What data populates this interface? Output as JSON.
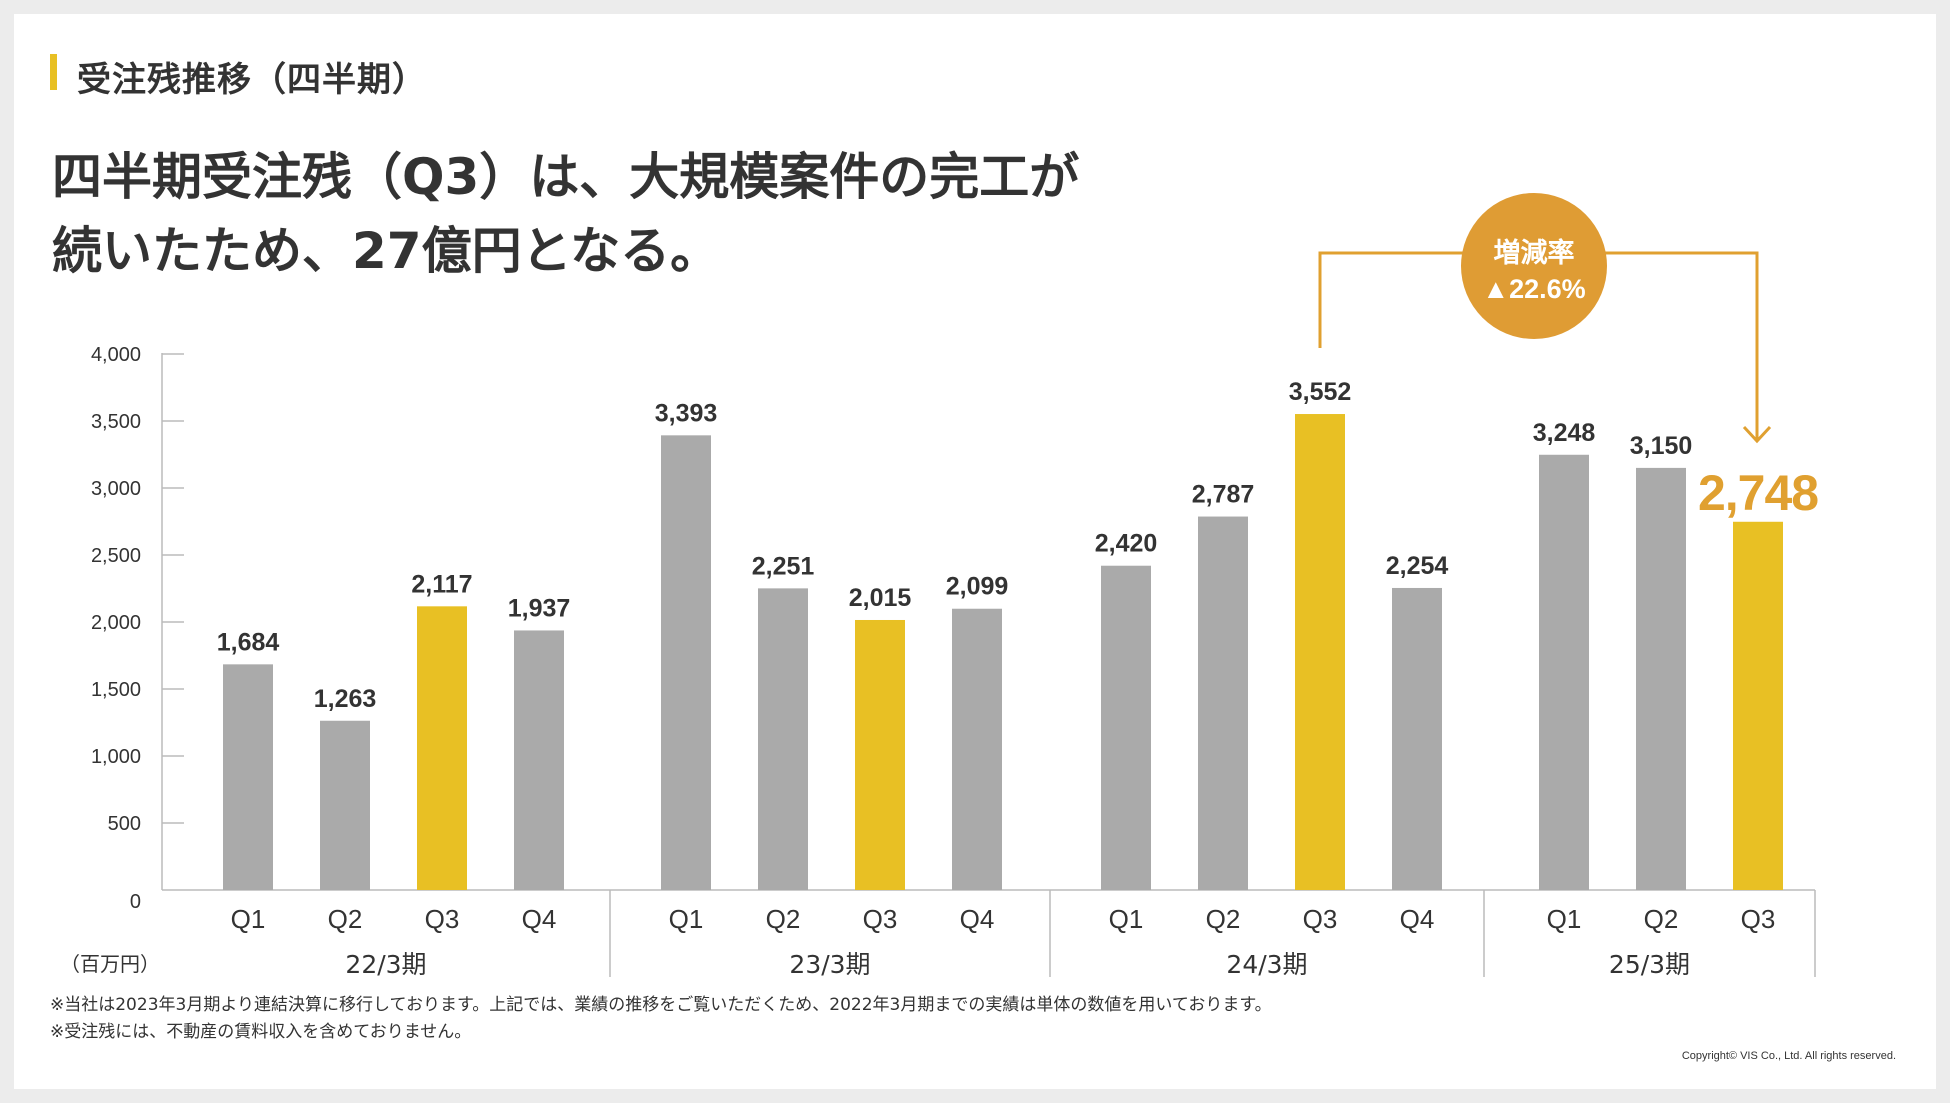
{
  "section": {
    "title": "受注残推移（四半期）"
  },
  "headline": {
    "line1": "四半期受注残（Q3）は、大規模案件の完工が",
    "line2": "続いたため、27億円となる。"
  },
  "badge": {
    "label": "増減率",
    "value": "▲22.6%"
  },
  "notes": [
    "※当社は2023年3月期より連結決算に移行しております。上記では、業績の推移をご覧いただくため、2022年3月期までの実績は単体の数値を用いております。",
    "※受注残には、不動産の賃料収入を含めておりません。"
  ],
  "copyright": "Copyright© VIS Co., Ltd. All rights reserved.",
  "colors": {
    "gray_bar": "#aaaaaa",
    "highlight_bar": "#e8c024",
    "accent": "#e0a030",
    "badge": "#df9c34",
    "text": "#333333",
    "axis": "#bbbbbb"
  },
  "chart_data": {
    "type": "bar",
    "unit_label": "（百万円）",
    "ylim": [
      0,
      4000
    ],
    "yticks": [
      0,
      500,
      1000,
      1500,
      2000,
      2500,
      3000,
      3500,
      4000
    ],
    "ytick_labels": [
      "0",
      "500",
      "1,000",
      "1,500",
      "2,000",
      "2,500",
      "3,000",
      "3,500",
      "4,000"
    ],
    "groups": [
      {
        "name": "22/3期",
        "bars": [
          {
            "q": "Q1",
            "value": 1684,
            "label": "1,684",
            "highlight": false
          },
          {
            "q": "Q2",
            "value": 1263,
            "label": "1,263",
            "highlight": false
          },
          {
            "q": "Q3",
            "value": 2117,
            "label": "2,117",
            "highlight": true
          },
          {
            "q": "Q4",
            "value": 1937,
            "label": "1,937",
            "highlight": false
          }
        ]
      },
      {
        "name": "23/3期",
        "bars": [
          {
            "q": "Q1",
            "value": 3393,
            "label": "3,393",
            "highlight": false
          },
          {
            "q": "Q2",
            "value": 2251,
            "label": "2,251",
            "highlight": false
          },
          {
            "q": "Q3",
            "value": 2015,
            "label": "2,015",
            "highlight": true
          },
          {
            "q": "Q4",
            "value": 2099,
            "label": "2,099",
            "highlight": false
          }
        ]
      },
      {
        "name": "24/3期",
        "bars": [
          {
            "q": "Q1",
            "value": 2420,
            "label": "2,420",
            "highlight": false
          },
          {
            "q": "Q2",
            "value": 2787,
            "label": "2,787",
            "highlight": false
          },
          {
            "q": "Q3",
            "value": 3552,
            "label": "3,552",
            "highlight": true
          },
          {
            "q": "Q4",
            "value": 2254,
            "label": "2,254",
            "highlight": false
          }
        ]
      },
      {
        "name": "25/3期",
        "bars": [
          {
            "q": "Q1",
            "value": 3248,
            "label": "3,248",
            "highlight": false
          },
          {
            "q": "Q2",
            "value": 3150,
            "label": "3,150",
            "highlight": false
          },
          {
            "q": "Q3",
            "value": 2748,
            "label": "2,748",
            "highlight": true,
            "emphasis": true
          }
        ]
      }
    ]
  }
}
